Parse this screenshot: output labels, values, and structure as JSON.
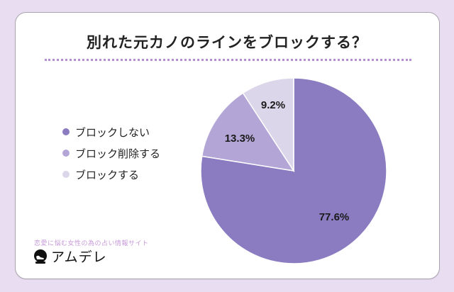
{
  "title": "別れた元カノのラインをブロックする？",
  "legend": [
    {
      "label": "ブロックしない",
      "color": "#8b7cc2"
    },
    {
      "label": "ブロック削除する",
      "color": "#b3a6d6"
    },
    {
      "label": "ブロックする",
      "color": "#dcd6ea"
    }
  ],
  "footer": {
    "tagline": "恋愛に悩む女性の為の占い情報サイト",
    "brand": "アムデレ"
  },
  "colors": {
    "background": "#e9ddf1",
    "divider": "#b58fd3",
    "slice_1": "#8b7cc2",
    "slice_2": "#b3a6d6",
    "slice_3": "#dcd6ea"
  },
  "chart_data": {
    "type": "pie",
    "title": "別れた元カノのラインをブロックする？",
    "categories": [
      "ブロックしない",
      "ブロック削除する",
      "ブロックする"
    ],
    "values": [
      77.6,
      13.3,
      9.2
    ],
    "labels": [
      "77.6%",
      "13.3%",
      "9.2%"
    ],
    "start_angle": "12 o'clock, clockwise",
    "legend_position": "left"
  }
}
